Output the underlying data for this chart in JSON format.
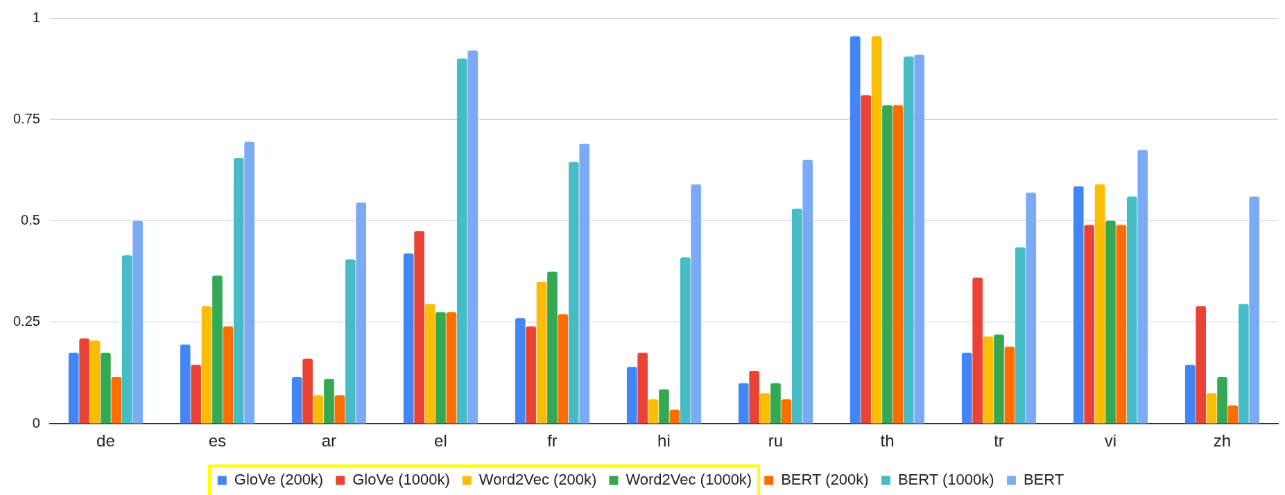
{
  "chart_data": {
    "type": "bar",
    "categories": [
      "de",
      "es",
      "ar",
      "el",
      "fr",
      "hi",
      "ru",
      "th",
      "tr",
      "vi",
      "zh"
    ],
    "series": [
      {
        "name": "GloVe (200k)",
        "color": "#4285f4",
        "values": [
          0.175,
          0.195,
          0.115,
          0.42,
          0.26,
          0.14,
          0.1,
          0.955,
          0.175,
          0.585,
          0.145
        ]
      },
      {
        "name": "GloVe (1000k)",
        "color": "#ea4335",
        "values": [
          0.21,
          0.145,
          0.16,
          0.475,
          0.24,
          0.175,
          0.13,
          0.81,
          0.36,
          0.49,
          0.29
        ]
      },
      {
        "name": "Word2Vec (200k)",
        "color": "#fbbc04",
        "values": [
          0.205,
          0.29,
          0.07,
          0.295,
          0.35,
          0.06,
          0.075,
          0.955,
          0.215,
          0.59,
          0.075
        ]
      },
      {
        "name": "Word2Vec (1000k)",
        "color": "#34a853",
        "values": [
          0.175,
          0.365,
          0.11,
          0.275,
          0.375,
          0.085,
          0.1,
          0.785,
          0.22,
          0.5,
          0.115
        ]
      },
      {
        "name": "BERT (200k)",
        "color": "#ff6d01",
        "values": [
          0.115,
          0.24,
          0.07,
          0.275,
          0.27,
          0.035,
          0.06,
          0.785,
          0.19,
          0.49,
          0.045
        ]
      },
      {
        "name": "BERT (1000k)",
        "color": "#46bdc6",
        "values": [
          0.415,
          0.655,
          0.405,
          0.9,
          0.645,
          0.41,
          0.53,
          0.905,
          0.435,
          0.56,
          0.295
        ]
      },
      {
        "name": "BERT",
        "color": "#7baaf7",
        "values": [
          0.5,
          0.695,
          0.545,
          0.92,
          0.69,
          0.59,
          0.65,
          0.91,
          0.57,
          0.675,
          0.56
        ]
      }
    ],
    "ylim": [
      0,
      1
    ],
    "yticks": [
      0,
      0.25,
      0.5,
      0.75,
      1
    ],
    "grid": "y",
    "legend": "bottom"
  }
}
